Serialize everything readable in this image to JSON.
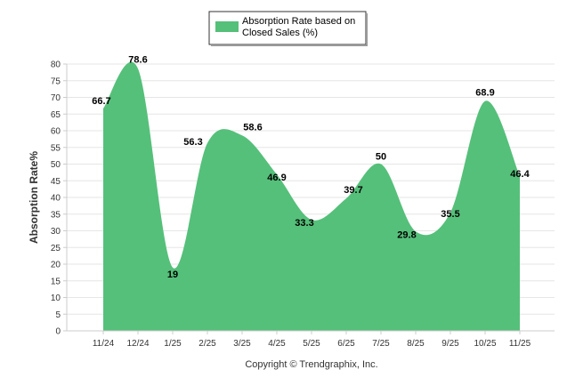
{
  "chart_data": {
    "type": "area",
    "categories": [
      "11/24",
      "12/24",
      "1/25",
      "2/25",
      "3/25",
      "4/25",
      "5/25",
      "6/25",
      "7/25",
      "8/25",
      "9/25",
      "10/25",
      "11/25"
    ],
    "series": [
      {
        "name": "Absorption Rate based on Closed Sales (%)",
        "values": [
          66.7,
          78.6,
          19,
          56.3,
          58.6,
          46.9,
          33.3,
          39.7,
          50,
          29.8,
          35.5,
          68.9,
          46.4
        ],
        "color": "#55c07a"
      }
    ],
    "ylabel": "Absorption Rate%",
    "ylim": [
      0,
      80
    ],
    "yticks": [
      0,
      5,
      10,
      15,
      20,
      25,
      30,
      35,
      40,
      45,
      50,
      55,
      60,
      65,
      70,
      75,
      80
    ],
    "grid": true,
    "legend": "top-center",
    "data_labels": [
      "66.7",
      "78.6",
      "19",
      "56.3",
      "58.6",
      "46.9",
      "33.3",
      "39.7",
      "50",
      "29.8",
      "35.5",
      "68.9",
      "46.4"
    ]
  },
  "legend": {
    "line1": "Absorption Rate based on",
    "line2": "Closed Sales (%)"
  },
  "footer": {
    "copyright": "Copyright © Trendgraphix, Inc."
  }
}
